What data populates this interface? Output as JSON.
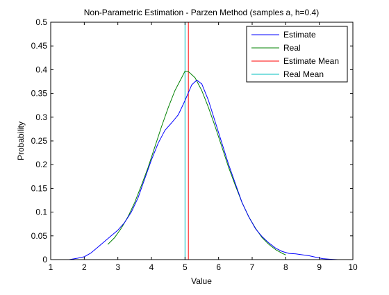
{
  "chart_data": {
    "type": "line",
    "title": "Non-Parametric Estimation - Parzen Method (samples a, h=0.4)",
    "xlabel": "Value",
    "ylabel": "Probability",
    "xlim": [
      1,
      10
    ],
    "ylim": [
      0,
      0.5
    ],
    "xticks": [
      1,
      2,
      3,
      4,
      5,
      6,
      7,
      8,
      9,
      10
    ],
    "xtick_labels": [
      "1",
      "2",
      "3",
      "4",
      "5",
      "6",
      "7",
      "8",
      "9",
      "10"
    ],
    "yticks": [
      0,
      0.05,
      0.1,
      0.15,
      0.2,
      0.25,
      0.3,
      0.35,
      0.4,
      0.45,
      0.5
    ],
    "ytick_labels": [
      "0",
      "0.05",
      "0.1",
      "0.15",
      "0.2",
      "0.25",
      "0.3",
      "0.35",
      "0.4",
      "0.45",
      "0.5"
    ],
    "grid": false,
    "legend_position": "top-right",
    "legend": [
      "Estimate",
      "Real",
      "Estimate Mean",
      "Real Mean"
    ],
    "series": [
      {
        "name": "Estimate",
        "color": "#0000ff",
        "x": [
          1.55,
          1.8,
          2.0,
          2.2,
          2.4,
          2.6,
          2.8,
          3.0,
          3.2,
          3.4,
          3.6,
          3.8,
          4.0,
          4.2,
          4.4,
          4.6,
          4.8,
          5.0,
          5.2,
          5.35,
          5.5,
          5.7,
          5.9,
          6.1,
          6.3,
          6.5,
          6.7,
          6.9,
          7.1,
          7.3,
          7.5,
          7.7,
          7.9,
          8.1,
          8.3,
          8.5,
          8.7,
          8.9,
          9.1,
          9.3,
          9.55
        ],
        "y": [
          0.0,
          0.003,
          0.006,
          0.014,
          0.026,
          0.038,
          0.05,
          0.062,
          0.078,
          0.1,
          0.13,
          0.17,
          0.21,
          0.245,
          0.272,
          0.288,
          0.305,
          0.335,
          0.368,
          0.378,
          0.37,
          0.335,
          0.29,
          0.245,
          0.2,
          0.16,
          0.12,
          0.09,
          0.065,
          0.048,
          0.035,
          0.024,
          0.017,
          0.013,
          0.012,
          0.01,
          0.008,
          0.005,
          0.002,
          0.001,
          0.0
        ]
      },
      {
        "name": "Real",
        "color": "#008000",
        "x": [
          2.7,
          2.9,
          3.1,
          3.3,
          3.5,
          3.7,
          3.9,
          4.1,
          4.3,
          4.5,
          4.7,
          4.9,
          5.0,
          5.1,
          5.3,
          5.5,
          5.7,
          5.9,
          6.1,
          6.3,
          6.5,
          6.7,
          6.9,
          7.1,
          7.3,
          7.5,
          7.7,
          7.9,
          8.0
        ],
        "y": [
          0.032,
          0.046,
          0.066,
          0.09,
          0.12,
          0.156,
          0.194,
          0.237,
          0.28,
          0.32,
          0.356,
          0.383,
          0.397,
          0.396,
          0.383,
          0.356,
          0.32,
          0.28,
          0.237,
          0.194,
          0.156,
          0.12,
          0.09,
          0.066,
          0.046,
          0.032,
          0.021,
          0.013,
          0.01
        ]
      }
    ],
    "vlines": [
      {
        "name": "Estimate Mean",
        "color": "#ff0000",
        "x": 5.1,
        "y_range": [
          0,
          0.5
        ]
      },
      {
        "name": "Real Mean",
        "color": "#00bfbf",
        "x": 5.0,
        "y_range": [
          0,
          0.5
        ]
      }
    ]
  }
}
